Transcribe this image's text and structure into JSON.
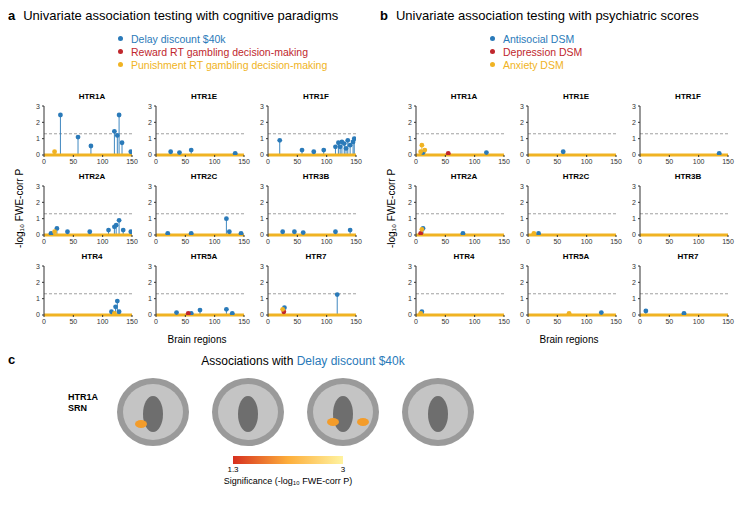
{
  "chart_data": [
    {
      "type": "stem",
      "label": "a",
      "title": "Univariate association testing with cognitive paradigms",
      "xlabel": "Brain regions",
      "ylabel": "-log₁₀ FWE-corr P",
      "xlim": [
        0,
        150
      ],
      "xticks": [
        0,
        50,
        100,
        150
      ],
      "ylim": [
        0,
        3
      ],
      "yticks": [
        0,
        1,
        2,
        3
      ],
      "threshold": 1.3,
      "legend": "top",
      "series": [
        {
          "name": "Delay discount $40k",
          "color": "#2a7ab9"
        },
        {
          "name": "Reward RT gambling decision-making",
          "color": "#c0272d"
        },
        {
          "name": "Punishment RT gambling decision-making",
          "color": "#f0b323"
        }
      ],
      "subplots": [
        {
          "title": "HTR1A",
          "series": [
            {
              "name": "Delay discount $40k",
              "x": [
                28,
                58,
                80,
                120,
                125,
                128,
                133,
                148
              ],
              "values": [
                2.45,
                1.1,
                0.55,
                1.45,
                1.2,
                2.45,
                0.75,
                0.2
              ]
            },
            {
              "name": "Reward RT gambling decision-making",
              "x": [],
              "values": []
            },
            {
              "name": "Punishment RT gambling decision-making",
              "x": [
                18
              ],
              "values": [
                0.2
              ]
            }
          ]
        },
        {
          "title": "HTR1E",
          "series": [
            {
              "name": "Delay discount $40k",
              "x": [
                25,
                40,
                60,
                135
              ],
              "values": [
                0.2,
                0.15,
                0.3,
                0.1
              ]
            },
            {
              "name": "Reward RT gambling decision-making",
              "x": [],
              "values": []
            },
            {
              "name": "Punishment RT gambling decision-making",
              "x": [],
              "values": []
            }
          ]
        },
        {
          "title": "HTR1F",
          "series": [
            {
              "name": "Delay discount $40k",
              "x": [
                20,
                58,
                78,
                95,
                115,
                120,
                123,
                126,
                130,
                133,
                136,
                140,
                145,
                147
              ],
              "values": [
                0.9,
                0.3,
                0.2,
                0.3,
                0.5,
                0.75,
                0.5,
                0.8,
                0.7,
                0.4,
                0.9,
                0.6,
                0.8,
                1.0
              ]
            },
            {
              "name": "Reward RT gambling decision-making",
              "x": [],
              "values": []
            },
            {
              "name": "Punishment RT gambling decision-making",
              "x": [],
              "values": []
            }
          ]
        },
        {
          "title": "HTR2A",
          "series": [
            {
              "name": "Delay discount $40k",
              "x": [
                12,
                22,
                40,
                78,
                110,
                120,
                123,
                128,
                135,
                148
              ],
              "values": [
                0.1,
                0.4,
                0.2,
                0.2,
                0.3,
                0.5,
                0.6,
                0.9,
                0.3,
                0.2
              ]
            },
            {
              "name": "Reward RT gambling decision-making",
              "x": [],
              "values": []
            },
            {
              "name": "Punishment RT gambling decision-making",
              "x": [
                18
              ],
              "values": [
                0.2
              ]
            }
          ]
        },
        {
          "title": "HTR2C",
          "series": [
            {
              "name": "Delay discount $40k",
              "x": [
                20,
                60,
                120,
                125,
                145
              ],
              "values": [
                0.1,
                0.1,
                1.0,
                0.2,
                0.1
              ]
            },
            {
              "name": "Reward RT gambling decision-making",
              "x": [],
              "values": []
            },
            {
              "name": "Punishment RT gambling decision-making",
              "x": [],
              "values": []
            }
          ]
        },
        {
          "title": "HTR3B",
          "series": [
            {
              "name": "Delay discount $40k",
              "x": [
                25,
                45,
                60,
                115,
                140
              ],
              "values": [
                0.2,
                0.2,
                0.15,
                0.2,
                0.3
              ]
            },
            {
              "name": "Reward RT gambling decision-making",
              "x": [],
              "values": []
            },
            {
              "name": "Punishment RT gambling decision-making",
              "x": [],
              "values": []
            }
          ]
        },
        {
          "title": "HTR4",
          "series": [
            {
              "name": "Delay discount $40k",
              "x": [
                115,
                122,
                125,
                128
              ],
              "values": [
                0.2,
                0.5,
                0.85,
                0.2
              ]
            },
            {
              "name": "Reward RT gambling decision-making",
              "x": [],
              "values": []
            },
            {
              "name": "Punishment RT gambling decision-making",
              "x": [
                120
              ],
              "values": [
                0.1
              ]
            }
          ]
        },
        {
          "title": "HTR5A",
          "series": [
            {
              "name": "Delay discount $40k",
              "x": [
                35,
                60,
                75,
                120,
                130
              ],
              "values": [
                0.15,
                0.1,
                0.3,
                0.35,
                0.1
              ]
            },
            {
              "name": "Reward RT gambling decision-making",
              "x": [
                55
              ],
              "values": [
                0.1
              ]
            },
            {
              "name": "Punishment RT gambling decision-making",
              "x": [],
              "values": []
            }
          ]
        },
        {
          "title": "HTR7",
          "series": [
            {
              "name": "Delay discount $40k",
              "x": [
                28,
                118
              ],
              "values": [
                0.45,
                1.25
              ]
            },
            {
              "name": "Reward RT gambling decision-making",
              "x": [
                27
              ],
              "values": [
                0.2
              ]
            },
            {
              "name": "Punishment RT gambling decision-making",
              "x": [
                25
              ],
              "values": [
                0.35
              ]
            }
          ]
        }
      ]
    },
    {
      "type": "stem",
      "label": "b",
      "title": "Univariate association testing with psychiatric scores",
      "xlabel": "Brain regions",
      "ylabel": "-log₁₀ FWE-corr P",
      "xlim": [
        0,
        150
      ],
      "xticks": [
        0,
        50,
        100,
        150
      ],
      "ylim": [
        0,
        3
      ],
      "yticks": [
        0,
        1,
        2,
        3
      ],
      "threshold": 1.3,
      "legend": "top",
      "series": [
        {
          "name": "Antisocial DSM",
          "color": "#2a7ab9"
        },
        {
          "name": "Depression DSM",
          "color": "#c0272d"
        },
        {
          "name": "Anxiety DSM",
          "color": "#f0b323"
        }
      ],
      "subplots": [
        {
          "title": "HTR1A",
          "series": [
            {
              "name": "Antisocial DSM",
              "x": [
                12,
                120
              ],
              "values": [
                0.15,
                0.15
              ]
            },
            {
              "name": "Depression DSM",
              "x": [
                55
              ],
              "values": [
                0.1
              ]
            },
            {
              "name": "Anxiety DSM",
              "x": [
                8,
                10,
                15
              ],
              "values": [
                0.2,
                0.6,
                0.3
              ]
            }
          ]
        },
        {
          "title": "HTR1E",
          "series": [
            {
              "name": "Antisocial DSM",
              "x": [
                60
              ],
              "values": [
                0.2
              ]
            },
            {
              "name": "Depression DSM",
              "x": [],
              "values": []
            },
            {
              "name": "Anxiety DSM",
              "x": [],
              "values": []
            }
          ]
        },
        {
          "title": "HTR1F",
          "series": [
            {
              "name": "Antisocial DSM",
              "x": [
                135
              ],
              "values": [
                0.1
              ]
            },
            {
              "name": "Depression DSM",
              "x": [],
              "values": []
            },
            {
              "name": "Anxiety DSM",
              "x": [],
              "values": []
            }
          ]
        },
        {
          "title": "HTR2A",
          "series": [
            {
              "name": "Antisocial DSM",
              "x": [
                12,
                80
              ],
              "values": [
                0.4,
                0.1
              ]
            },
            {
              "name": "Depression DSM",
              "x": [
                8
              ],
              "values": [
                0.1
              ]
            },
            {
              "name": "Anxiety DSM",
              "x": [
                10
              ],
              "values": [
                0.35
              ]
            }
          ]
        },
        {
          "title": "HTR2C",
          "series": [
            {
              "name": "Antisocial DSM",
              "x": [
                18
              ],
              "values": [
                0.1
              ]
            },
            {
              "name": "Depression DSM",
              "x": [],
              "values": []
            },
            {
              "name": "Anxiety DSM",
              "x": [
                10
              ],
              "values": [
                0.1
              ]
            }
          ]
        },
        {
          "title": "HTR3B",
          "series": [
            {
              "name": "Antisocial DSM",
              "x": [],
              "values": []
            },
            {
              "name": "Depression DSM",
              "x": [],
              "values": []
            },
            {
              "name": "Anxiety DSM",
              "x": [],
              "values": []
            }
          ]
        },
        {
          "title": "HTR4",
          "series": [
            {
              "name": "Antisocial DSM",
              "x": [
                10
              ],
              "values": [
                0.2
              ]
            },
            {
              "name": "Depression DSM",
              "x": [],
              "values": []
            },
            {
              "name": "Anxiety DSM",
              "x": [
                8
              ],
              "values": [
                0.1
              ]
            }
          ]
        },
        {
          "title": "HTR5A",
          "series": [
            {
              "name": "Antisocial DSM",
              "x": [
                125
              ],
              "values": [
                0.15
              ]
            },
            {
              "name": "Depression DSM",
              "x": [],
              "values": []
            },
            {
              "name": "Anxiety DSM",
              "x": [
                70
              ],
              "values": [
                0.1
              ]
            }
          ]
        },
        {
          "title": "HTR7",
          "series": [
            {
              "name": "Antisocial DSM",
              "x": [
                10,
                75
              ],
              "values": [
                0.25,
                0.1
              ]
            },
            {
              "name": "Depression DSM",
              "x": [],
              "values": []
            },
            {
              "name": "Anxiety DSM",
              "x": [],
              "values": []
            }
          ]
        }
      ]
    }
  ],
  "panel_c": {
    "label": "c",
    "title": "Associations with",
    "title_highlight": "Delay discount $40k",
    "title_highlight_color": "#2a7ab9",
    "row_label": [
      "HTR1A",
      "SRN"
    ],
    "colorbar": {
      "range": [
        1.3,
        3
      ],
      "ticks": [
        1.3,
        3
      ],
      "label": "Significance (-log₁₀ FWE-corr P)",
      "colors": [
        "#d7301f",
        "#fdae3b",
        "#fff3a0"
      ]
    }
  }
}
